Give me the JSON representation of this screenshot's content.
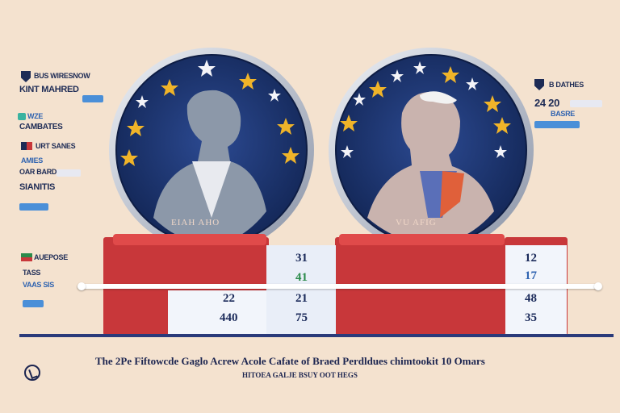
{
  "left_legend": {
    "group1_title": "BUS WIRESNOW",
    "group1_line2": "KINT MAHRED",
    "group1_line3": "WZE",
    "group1_line4": "CAMBATES",
    "group2_title": "URT SANES",
    "group2_line2": "AMIES",
    "group2_line3": "OAR BARD",
    "group2_line4": "SIANITIS",
    "group3_title": "AUEPOSE",
    "group3_line2": "TASS",
    "group3_line3": "VAAS SIS"
  },
  "right_legend": {
    "title": "B DATHES",
    "line2": "24 20",
    "line3": "BASRE"
  },
  "coins": {
    "left_label": "EIAH AHO",
    "right_label": "VU AFIG"
  },
  "podium": {
    "left_top_value": "31",
    "left_top_value2": "41",
    "left_low_value1": "22",
    "left_low_value2": "440",
    "mid_value1": "21",
    "mid_value2": "75",
    "right_top_value": "12",
    "right_top_value2": "17",
    "right_low_value1": "48",
    "right_low_value2": "35"
  },
  "caption": {
    "line1": "The 2Pe Fiftowcde Gaglo Acrew Acole Cafate of Braed Perdldues chimtookit 10 Omars",
    "line2": "HITOEA GALJE BSUY OOT HEGS"
  },
  "colors": {
    "background": "#f4e2cf",
    "coin_blue": "#1d3571",
    "podium_red": "#c8373a",
    "star_gold": "#f0b429"
  },
  "icons": {
    "corner_logo": "circle-logo-icon",
    "shield": "shield-icon",
    "flag": "flag-icon"
  }
}
